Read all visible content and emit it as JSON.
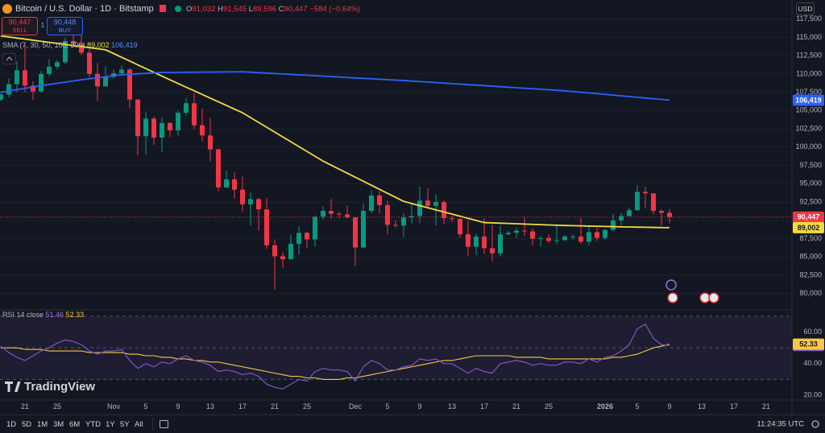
{
  "header": {
    "symbol": "Bitcoin / U.S. Dollar · 1D · Bitstamp",
    "ohlc": [
      {
        "label": "O",
        "value": "91,032"
      },
      {
        "label": "H",
        "value": "91,545"
      },
      {
        "label": "L",
        "value": "89,596"
      },
      {
        "label": "C",
        "value": "90,447"
      }
    ],
    "change": "−584 (−0.64%)"
  },
  "trade": {
    "sell_price": "90,447",
    "sell": "SELL",
    "buy_price": "90,448",
    "buy": "BUY"
  },
  "currency": "USD",
  "logo": "TradingView",
  "timeframes": [
    "1D",
    "5D",
    "1M",
    "3M",
    "6M",
    "YTD",
    "1Y",
    "5Y",
    "All"
  ],
  "clock": "11:24:35 UTC",
  "chart_data": [
    {
      "type": "candlestick",
      "indicator_label": "SMA (7, 30, 50, 100, 200)",
      "up_color": "#089981",
      "down_color": "#f23645",
      "grid": true,
      "categories": [
        null,
        null,
        null,
        "21",
        null,
        null,
        null,
        "25",
        null,
        null,
        null,
        null,
        null,
        null,
        "Nov",
        null,
        null,
        null,
        "5",
        null,
        null,
        null,
        "9",
        null,
        null,
        null,
        "13",
        null,
        null,
        null,
        "17",
        null,
        null,
        null,
        "21",
        null,
        null,
        null,
        "25",
        null,
        null,
        null,
        null,
        null,
        "Dec",
        null,
        null,
        null,
        "5",
        null,
        null,
        null,
        "9",
        null,
        null,
        null,
        "13",
        null,
        null,
        null,
        "17",
        null,
        null,
        null,
        "21",
        null,
        null,
        null,
        "25",
        null,
        null,
        null,
        null,
        null,
        null,
        "2026",
        null,
        null,
        null,
        "5",
        null,
        null,
        null,
        "9",
        null,
        null,
        null,
        "13",
        null,
        null,
        null,
        "17",
        null,
        null,
        null,
        "21",
        null,
        null
      ],
      "open": [
        106500,
        107200,
        108600,
        110500,
        108400,
        107600,
        110000,
        111000,
        111600,
        114500,
        114100,
        112900,
        110000,
        108300,
        109600,
        110100,
        110600,
        106500,
        101500,
        103900,
        101300,
        103300,
        102300,
        104700,
        106000,
        103000,
        101600,
        99700,
        94500,
        95600,
        94200,
        92200,
        92900,
        91500,
        86600,
        85100,
        84700,
        86800,
        88300,
        87400,
        90500,
        91300,
        90900,
        90800,
        90400,
        86300,
        91300,
        93400,
        92100,
        89400,
        89300,
        90400,
        90600,
        92700,
        92000,
        92500,
        90300,
        90200,
        88100,
        86400,
        87800,
        86200,
        85500,
        88100,
        88300,
        88600,
        88500,
        87500,
        87600,
        87200,
        87300,
        87800,
        87800,
        87100,
        88400,
        87600,
        88700,
        90000,
        90600,
        91400,
        93900,
        93700,
        91300,
        91032,
        null,
        null,
        null,
        null,
        null,
        null,
        null,
        null,
        null,
        null,
        null,
        null,
        null,
        null
      ],
      "high": [
        107600,
        109400,
        111700,
        114000,
        109000,
        110400,
        112000,
        111900,
        115000,
        116100,
        116000,
        113600,
        111500,
        111100,
        110600,
        111200,
        110800,
        106600,
        104800,
        104200,
        104100,
        103400,
        105000,
        106700,
        107400,
        105300,
        104000,
        99800,
        96800,
        96600,
        96000,
        93800,
        93100,
        93100,
        87400,
        85600,
        88000,
        89200,
        88500,
        90700,
        91900,
        92900,
        91200,
        92000,
        90400,
        92300,
        94100,
        94000,
        92700,
        90000,
        91000,
        92300,
        94600,
        94400,
        93600,
        92700,
        90600,
        90300,
        90000,
        88200,
        90300,
        89400,
        89300,
        88600,
        89000,
        90500,
        88900,
        87900,
        88100,
        89500,
        88000,
        88100,
        90300,
        89200,
        89000,
        88800,
        90900,
        91000,
        91800,
        94800,
        94600,
        93600,
        91500,
        91545,
        null,
        null,
        null,
        null,
        null,
        null,
        null,
        null,
        null,
        null,
        null,
        null,
        null,
        null
      ],
      "low": [
        106300,
        106800,
        107500,
        107500,
        106500,
        107500,
        109700,
        110600,
        111300,
        113900,
        112600,
        109500,
        106300,
        108500,
        109400,
        109700,
        105300,
        98900,
        98900,
        100300,
        99300,
        101400,
        101500,
        104300,
        102500,
        100800,
        98000,
        94000,
        94500,
        93000,
        91200,
        89300,
        88600,
        86100,
        80600,
        83500,
        84700,
        85300,
        86200,
        86400,
        90100,
        90200,
        90300,
        90300,
        83800,
        86200,
        91000,
        91000,
        88100,
        89000,
        87700,
        89600,
        89600,
        91600,
        89300,
        89500,
        89800,
        87600,
        85200,
        85300,
        85400,
        84400,
        85100,
        88000,
        87600,
        87900,
        86600,
        86400,
        86900,
        86700,
        87200,
        87400,
        86800,
        86600,
        87200,
        87300,
        88500,
        89300,
        90500,
        91300,
        91600,
        90800,
        89300,
        89596,
        null,
        null,
        null,
        null,
        null,
        null,
        null,
        null,
        null,
        null,
        null,
        null,
        null,
        null
      ],
      "close": [
        107200,
        108600,
        110500,
        108400,
        107600,
        110000,
        111000,
        111600,
        114500,
        114100,
        112900,
        110000,
        108300,
        109600,
        110100,
        110600,
        106500,
        101500,
        103900,
        101300,
        103300,
        102300,
        104700,
        106000,
        103000,
        101600,
        99700,
        94500,
        95600,
        94200,
        92200,
        92900,
        91500,
        86600,
        85100,
        84700,
        86800,
        88300,
        87400,
        90500,
        91300,
        90900,
        90800,
        90400,
        86300,
        91300,
        93400,
        92100,
        89400,
        89300,
        90400,
        90600,
        92700,
        92000,
        92500,
        90300,
        90200,
        88100,
        86400,
        87800,
        86200,
        85500,
        88100,
        88300,
        88600,
        88500,
        87500,
        87600,
        87200,
        87300,
        87800,
        87800,
        87100,
        88400,
        87600,
        88700,
        90000,
        90600,
        91400,
        93900,
        93700,
        91300,
        91031,
        90447,
        null,
        null,
        null,
        null,
        null,
        null,
        null,
        null,
        null,
        null,
        null,
        null,
        null,
        null
      ],
      "last_price_label": "90,447",
      "series": [
        {
          "color": "#f2dc3a",
          "last_value_label": "89,002",
          "values": [
            115200,
            115050,
            114900,
            114760,
            114610,
            114470,
            114320,
            114180,
            114030,
            113880,
            113740,
            113590,
            113450,
            113300,
            112790,
            112270,
            111760,
            111240,
            110730,
            110210,
            109700,
            109200,
            108700,
            108200,
            107700,
            107200,
            106700,
            106200,
            105700,
            105200,
            104700,
            104040,
            103380,
            102720,
            102060,
            101400,
            100740,
            100080,
            99420,
            98760,
            98100,
            97550,
            97000,
            96450,
            95900,
            95350,
            94800,
            94250,
            93700,
            93150,
            92600,
            92310,
            92020,
            91730,
            91440,
            91150,
            90860,
            90570,
            90280,
            89990,
            89700,
            89660,
            89620,
            89580,
            89540,
            89500,
            89460,
            89420,
            89380,
            89340,
            89300,
            89280,
            89250,
            89220,
            89200,
            89170,
            89150,
            89120,
            89100,
            89080,
            89060,
            89040,
            89020,
            89002,
            null,
            null,
            null,
            null,
            null,
            null,
            null,
            null,
            null,
            null,
            null,
            null,
            null,
            null
          ]
        },
        {
          "color": "#2962ff",
          "last_value_label": "106,419",
          "values": [
            107500,
            107680,
            107860,
            108040,
            108220,
            108400,
            108560,
            108720,
            108880,
            109040,
            109200,
            109340,
            109480,
            109620,
            109760,
            109900,
            109960,
            110020,
            110080,
            110140,
            110200,
            110210,
            110220,
            110230,
            110240,
            110250,
            110260,
            110270,
            110280,
            110290,
            110300,
            110240,
            110180,
            110120,
            110060,
            110000,
            109940,
            109880,
            109820,
            109760,
            109700,
            109640,
            109580,
            109520,
            109460,
            109400,
            109340,
            109280,
            109220,
            109160,
            109100,
            109030,
            108960,
            108890,
            108820,
            108750,
            108680,
            108610,
            108540,
            108470,
            108400,
            108330,
            108260,
            108190,
            108120,
            108050,
            107980,
            107910,
            107840,
            107770,
            107700,
            107600,
            107500,
            107400,
            107310,
            107210,
            107110,
            107010,
            106910,
            106810,
            106710,
            106620,
            106520,
            106419,
            null,
            null,
            null,
            null,
            null,
            null,
            null,
            null,
            null,
            null,
            null,
            null,
            null,
            null
          ]
        }
      ],
      "ylim": [
        78000,
        120100
      ],
      "yticks": [
        {
          "value": 80000,
          "label": "80,000"
        },
        {
          "value": 82500,
          "label": "82,500"
        },
        {
          "value": 85000,
          "label": "85,000"
        },
        {
          "value": 87500,
          "label": "87,500"
        },
        {
          "value": 90000,
          "label": "90,000"
        },
        {
          "value": 92500,
          "label": "92,500"
        },
        {
          "value": 95000,
          "label": "95,000"
        },
        {
          "value": 97500,
          "label": "97,500"
        },
        {
          "value": 100000,
          "label": "100,000"
        },
        {
          "value": 102500,
          "label": "102,500"
        },
        {
          "value": 105000,
          "label": "105,000"
        },
        {
          "value": 107500,
          "label": "107,500"
        },
        {
          "value": 110000,
          "label": "110,000"
        },
        {
          "value": 112500,
          "label": "112,500"
        },
        {
          "value": 115000,
          "label": "115,000"
        },
        {
          "value": 117500,
          "label": "117,500"
        }
      ]
    },
    {
      "type": "line",
      "title": "RSI 14 close",
      "band_color": "#7e57c2",
      "levels": [
        30,
        50,
        70
      ],
      "series": [
        {
          "color": "#7e57c2",
          "last_value_label": "51.46",
          "values": [
            51,
            47,
            44,
            42,
            45,
            48,
            50,
            53,
            55,
            54,
            52,
            48,
            46,
            48,
            48,
            49,
            42,
            37,
            40,
            38,
            41,
            40,
            43,
            45,
            42,
            41,
            39,
            35,
            36,
            35,
            33,
            34,
            32,
            27,
            25,
            24,
            27,
            30,
            29,
            35,
            37,
            36,
            36,
            35,
            29,
            38,
            42,
            40,
            36,
            36,
            38,
            39,
            43,
            42,
            43,
            40,
            40,
            37,
            34,
            37,
            35,
            34,
            40,
            41,
            42,
            41,
            39,
            40,
            39,
            39,
            41,
            41,
            40,
            43,
            41,
            44,
            45,
            48,
            52,
            62,
            65,
            56,
            52,
            51.46,
            null,
            null,
            null,
            null,
            null,
            null,
            null,
            null,
            null,
            null,
            null,
            null,
            null,
            null
          ]
        },
        {
          "color": "#f7c844",
          "last_value_label": "52.33",
          "values": [
            50,
            50,
            50,
            49,
            49,
            49,
            48,
            48,
            48,
            48,
            48,
            47,
            47,
            47,
            47,
            47,
            46,
            46,
            45,
            45,
            44,
            44,
            43,
            43,
            42,
            42,
            41,
            41,
            40,
            39,
            38,
            37,
            36,
            35,
            34,
            33,
            32,
            32,
            31,
            31,
            30,
            30,
            30,
            31,
            31,
            32,
            33,
            34,
            35,
            36,
            37,
            38,
            39,
            40,
            41,
            42,
            42,
            43,
            44,
            45,
            45,
            45,
            45,
            45,
            44,
            44,
            44,
            44,
            43,
            43,
            43,
            43,
            43,
            43,
            43,
            43,
            44,
            44,
            45,
            46,
            48,
            50,
            51,
            52.33,
            null,
            null,
            null,
            null,
            null,
            null,
            null,
            null,
            null,
            null,
            null,
            null,
            null,
            null
          ]
        }
      ],
      "ylim": [
        17,
        73
      ],
      "yticks": [
        {
          "value": 20,
          "label": "20.00"
        },
        {
          "value": 40,
          "label": "40.00"
        },
        {
          "value": 60,
          "label": "60.00"
        }
      ]
    }
  ]
}
